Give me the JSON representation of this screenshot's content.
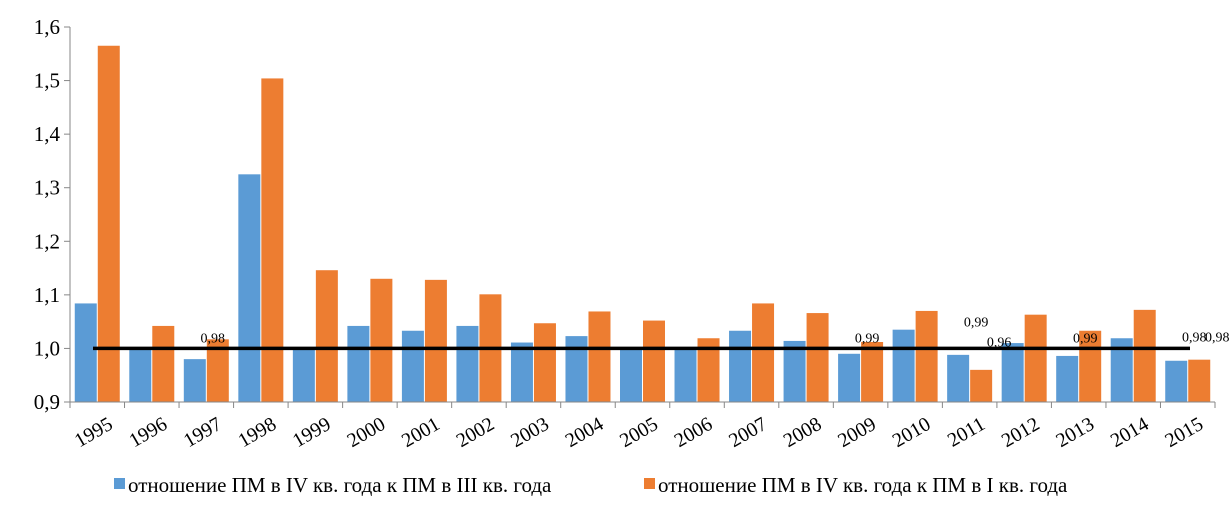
{
  "chart_data": {
    "type": "bar",
    "categories": [
      "1995",
      "1996",
      "1997",
      "1998",
      "1999",
      "2000",
      "2001",
      "2002",
      "2003",
      "2004",
      "2005",
      "2006",
      "2007",
      "2008",
      "2009",
      "2010",
      "2011",
      "2012",
      "2013",
      "2014",
      "2015"
    ],
    "series": [
      {
        "name": "отношение ПМ в IV кв. года к ПМ в III кв. года",
        "color": "#5b9bd5",
        "values": [
          1.084,
          1.0,
          0.98,
          1.325,
          1.0,
          1.042,
          1.033,
          1.042,
          1.011,
          1.023,
          1.002,
          1.0,
          1.033,
          1.014,
          0.99,
          1.035,
          0.988,
          1.01,
          0.986,
          1.019,
          0.977
        ]
      },
      {
        "name": "отношение ПМ в IV кв. года к ПМ в I кв. года",
        "color": "#ed7d31",
        "values": [
          1.565,
          1.042,
          1.017,
          1.504,
          1.146,
          1.13,
          1.128,
          1.101,
          1.047,
          1.069,
          1.052,
          1.019,
          1.084,
          1.066,
          1.012,
          1.07,
          0.96,
          1.063,
          1.033,
          1.072,
          0.979
        ]
      }
    ],
    "reference_line": 1.0,
    "reference_line_color": "#000000",
    "data_labels": [
      {
        "category": "1997",
        "series": 0,
        "text": "0,98"
      },
      {
        "category": "2009",
        "series": 0,
        "text": "0,99"
      },
      {
        "category": "2011",
        "series": 0,
        "text": "0,99"
      },
      {
        "category": "2011",
        "series": 1,
        "text": "0,96"
      },
      {
        "category": "2013",
        "series": 0,
        "text": "0,99"
      },
      {
        "category": "2015",
        "series": 0,
        "text": "0,98"
      },
      {
        "category": "2015",
        "series": 1,
        "text": "0,98"
      }
    ],
    "y_ticks": [
      "0,9",
      "1,0",
      "1,1",
      "1,2",
      "1,3",
      "1,4",
      "1,5",
      "1,6"
    ],
    "ylim": [
      0.9,
      1.6
    ],
    "title": "",
    "xlabel": "",
    "ylabel": "",
    "grid": false,
    "legend_position": "bottom"
  }
}
